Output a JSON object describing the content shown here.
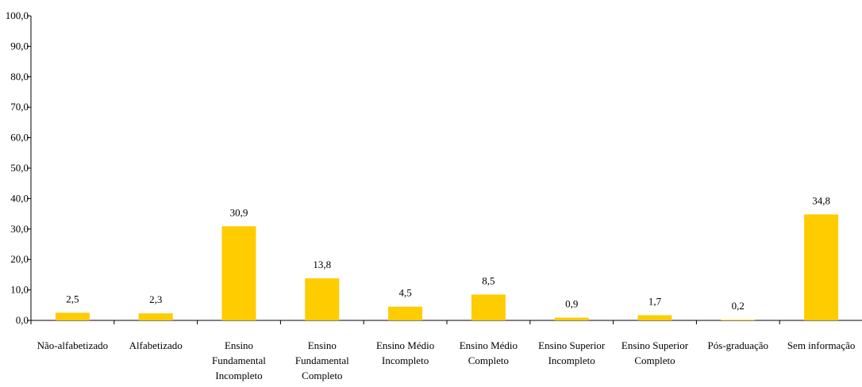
{
  "chart_data": {
    "type": "bar",
    "categories": [
      [
        "Não-alfabetizado"
      ],
      [
        "Alfabetizado"
      ],
      [
        "Ensino",
        "Fundamental",
        "Incompleto"
      ],
      [
        "Ensino",
        "Fundamental",
        "Completo"
      ],
      [
        "Ensino Médio",
        "Incompleto"
      ],
      [
        "Ensino Médio",
        "Completo"
      ],
      [
        "Ensino Superior",
        "Incompleto"
      ],
      [
        "Ensino Superior",
        "Completo"
      ],
      [
        "Pós-graduação"
      ],
      [
        "Sem informação"
      ]
    ],
    "values": [
      2.5,
      2.3,
      30.9,
      13.8,
      4.5,
      8.5,
      0.9,
      1.7,
      0.2,
      34.8
    ],
    "value_labels": [
      "2,5",
      "2,3",
      "30,9",
      "13,8",
      "4,5",
      "8,5",
      "0,9",
      "1,7",
      "0,2",
      "34,8"
    ],
    "ylim": [
      0,
      100
    ],
    "yticks": [
      "0,0",
      "10,0",
      "20,0",
      "30,0",
      "40,0",
      "50,0",
      "60,0",
      "70,0",
      "80,0",
      "90,0",
      "100,0"
    ],
    "title": "",
    "xlabel": "",
    "ylabel": "",
    "grid": false,
    "legend": "none",
    "bar_color": "#FFCC00"
  }
}
